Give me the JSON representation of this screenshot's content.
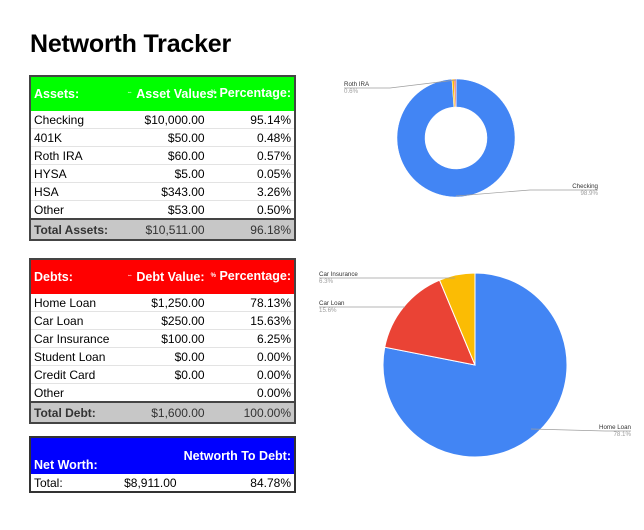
{
  "title": "Networth Tracker",
  "assets": {
    "header": {
      "label": "Assets:",
      "value_label": "Asset Values:",
      "value_icon": "⇔",
      "pct_icon": "%",
      "pct_label": "Percentage:"
    },
    "rows": [
      {
        "name": "Checking",
        "value": "$10,000.00",
        "pct": "95.14%"
      },
      {
        "name": "401K",
        "value": "$50.00",
        "pct": "0.48%"
      },
      {
        "name": "Roth IRA",
        "value": "$60.00",
        "pct": "0.57%"
      },
      {
        "name": "HYSA",
        "value": "$5.00",
        "pct": "0.05%"
      },
      {
        "name": "HSA",
        "value": "$343.00",
        "pct": "3.26%"
      },
      {
        "name": "Other",
        "value": "$53.00",
        "pct": "0.50%"
      }
    ],
    "total": {
      "name": "Total Assets:",
      "value": "$10,511.00",
      "pct": "96.18%"
    }
  },
  "debts": {
    "header": {
      "label": "Debts:",
      "value_label": "Debt Value:",
      "value_icon": "⇔",
      "pct_icon": "%",
      "pct_label": "Percentage:"
    },
    "rows": [
      {
        "name": "Home Loan",
        "value": "$1,250.00",
        "pct": "78.13%"
      },
      {
        "name": "Car Loan",
        "value": "$250.00",
        "pct": "15.63%"
      },
      {
        "name": "Car Insurance",
        "value": "$100.00",
        "pct": "6.25%"
      },
      {
        "name": "Student Loan",
        "value": "$0.00",
        "pct": "0.00%"
      },
      {
        "name": "Credit Card",
        "value": "$0.00",
        "pct": "0.00%"
      },
      {
        "name": "Other",
        "value": "",
        "pct": "0.00%"
      }
    ],
    "total": {
      "name": "Total Debt:",
      "value": "$1,600.00",
      "pct": "100.00%"
    }
  },
  "networth": {
    "header": {
      "label": "Net Worth:",
      "ratio_label": "Networth To Debt:"
    },
    "row": {
      "name": "Total:",
      "value": "$8,911.00",
      "pct": "84.78%"
    }
  },
  "colors": {
    "assets_header": "#00ff00",
    "debts_header": "#ff0000",
    "networth_header": "#0000ff",
    "blue": "#4285f4",
    "red": "#ea4335",
    "yellow": "#fbbc04",
    "orange": "#ff6d01"
  },
  "chart_data": [
    {
      "type": "pie",
      "donut": true,
      "categories": [
        "Checking",
        "Roth IRA",
        "401K",
        "HYSA",
        "HSA"
      ],
      "values": [
        98.9,
        0.6,
        0.49,
        0.01,
        0.0
      ],
      "colors": [
        "#4285f4",
        "#fbbc04",
        "#ea4335",
        "#34a853",
        "#ff6d01"
      ],
      "labels": [
        {
          "name": "Roth IRA",
          "pct": "0.6%"
        },
        {
          "name": "Checking",
          "pct": "98.9%"
        }
      ],
      "legend": "none"
    },
    {
      "type": "pie",
      "donut": false,
      "categories": [
        "Home Loan",
        "Car Loan",
        "Car Insurance"
      ],
      "values": [
        78.1,
        15.6,
        6.3
      ],
      "colors": [
        "#4285f4",
        "#ea4335",
        "#fbbc04"
      ],
      "labels": [
        {
          "name": "Car Insurance",
          "pct": "6.3%"
        },
        {
          "name": "Car Loan",
          "pct": "15.6%"
        },
        {
          "name": "Home Loan",
          "pct": "78.1%"
        }
      ],
      "legend": "none"
    }
  ]
}
